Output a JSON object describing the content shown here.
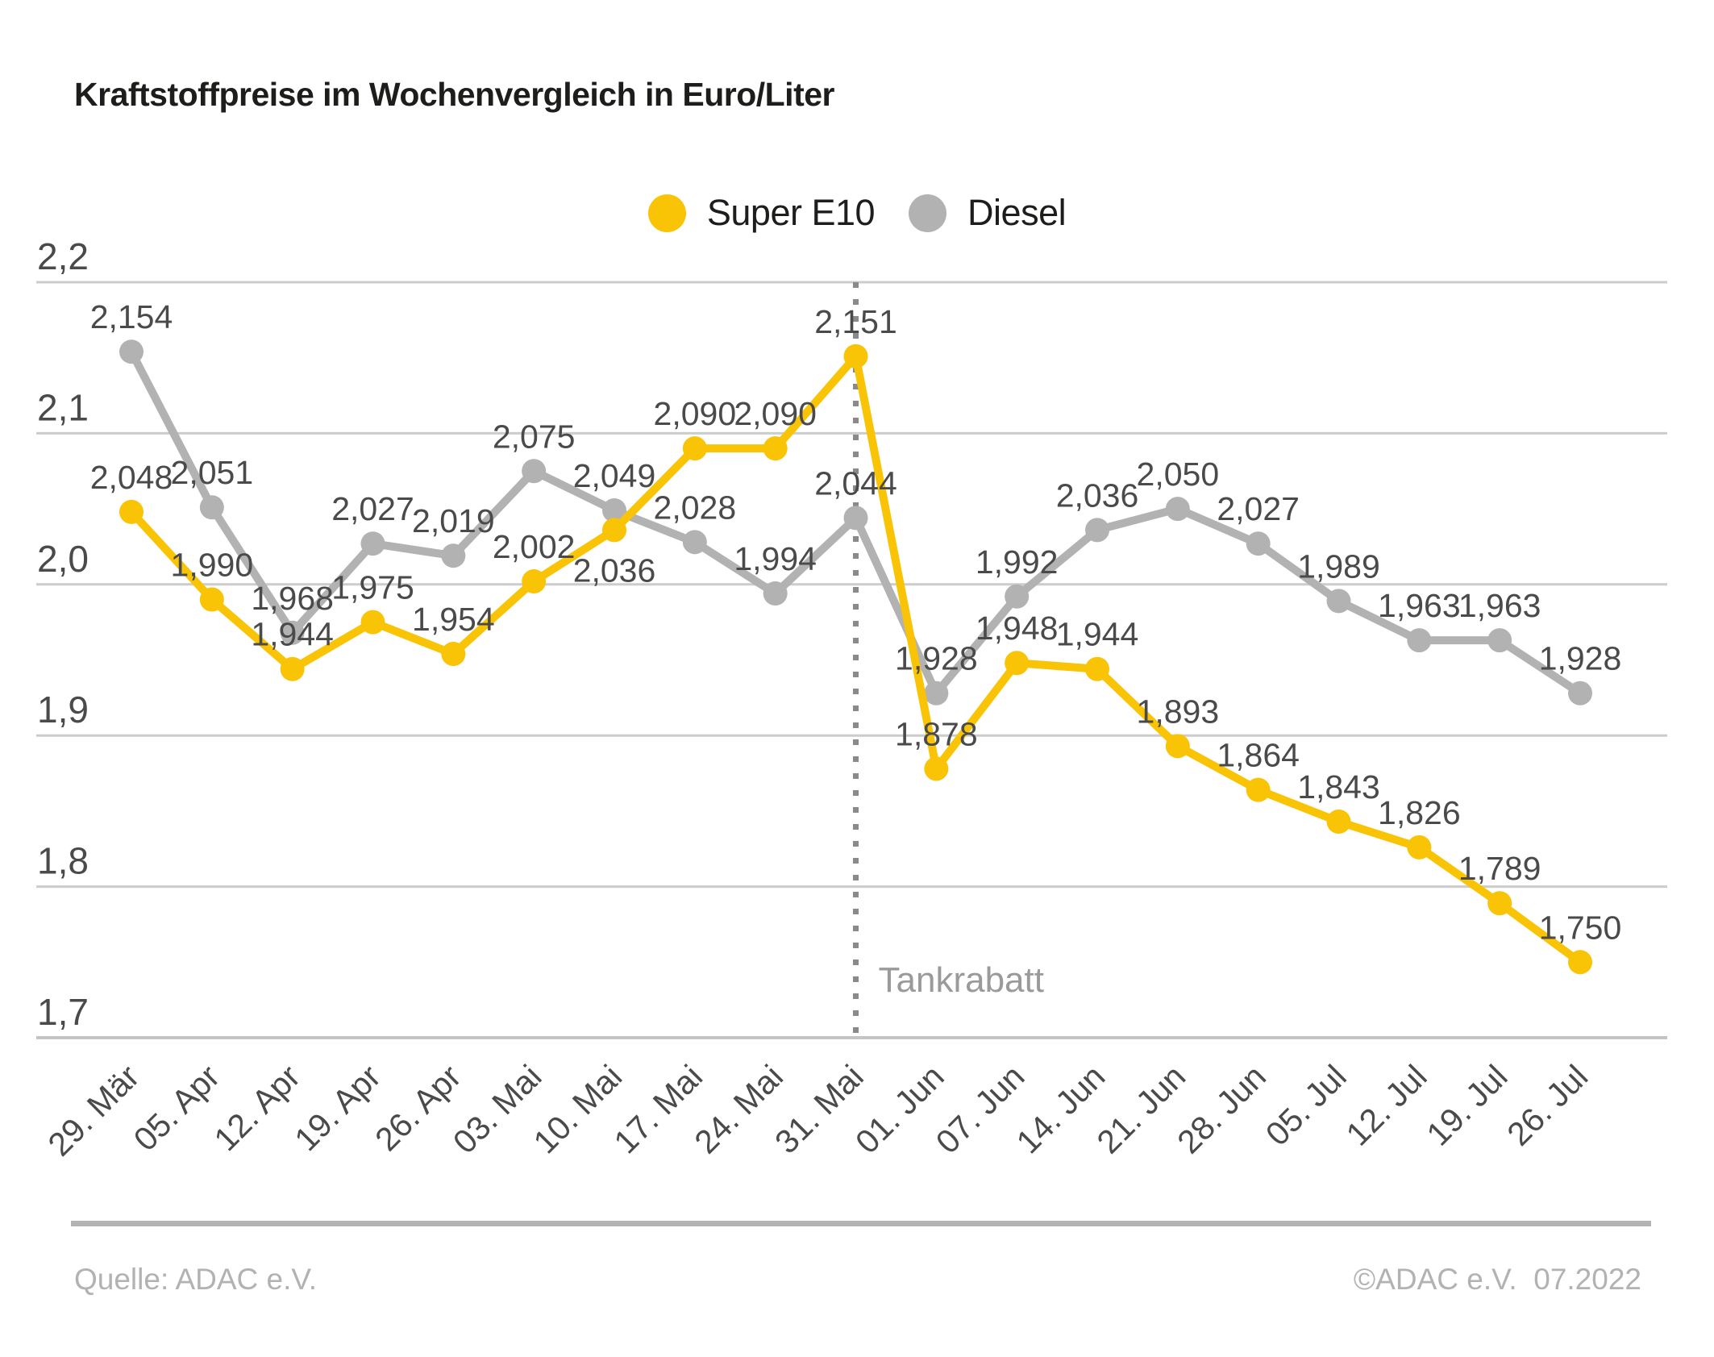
{
  "title": "Kraftstoffpreise im Wochenvergleich in Euro/Liter",
  "legend": [
    {
      "label": "Super E10",
      "color": "#f9c306"
    },
    {
      "label": "Diesel",
      "color": "#b2b2b2"
    }
  ],
  "chart_data": {
    "type": "line",
    "title": "Kraftstoffpreise im Wochenvergleich in Euro/Liter",
    "xlabel": "",
    "ylabel": "Euro/Liter",
    "categories": [
      "29. Mär",
      "05. Apr",
      "12. Apr",
      "19. Apr",
      "26. Apr",
      "03. Mai",
      "10. Mai",
      "17. Mai",
      "24. Mai",
      "31. Mai",
      "01. Jun",
      "07. Jun",
      "14. Jun",
      "21. Jun",
      "28. Jun",
      "05. Jul",
      "12. Jul",
      "19. Jul",
      "26. Jul"
    ],
    "series": [
      {
        "name": "Super E10",
        "color": "#f9c306",
        "values": [
          2.048,
          1.99,
          1.944,
          1.975,
          1.954,
          2.002,
          2.036,
          2.09,
          2.09,
          2.151,
          1.878,
          1.948,
          1.944,
          1.893,
          1.864,
          1.843,
          1.826,
          1.789,
          1.75
        ],
        "labels": [
          "2,048",
          "1,990",
          "1,944",
          "1,975",
          "1,954",
          "2,002",
          "2,036",
          "2,090",
          "2,090",
          "2,151",
          "1,878",
          "1,948",
          "1,944",
          "1,893",
          "1,864",
          "1,843",
          "1,826",
          "1,789",
          "1,750"
        ],
        "label_below_indices": [
          6
        ]
      },
      {
        "name": "Diesel",
        "color": "#b2b2b2",
        "values": [
          2.154,
          2.051,
          1.968,
          2.027,
          2.019,
          2.075,
          2.049,
          2.028,
          1.994,
          2.044,
          1.928,
          1.992,
          2.036,
          2.05,
          2.027,
          1.989,
          1.963,
          1.963,
          1.928
        ],
        "labels": [
          "2,154",
          "2,051",
          "1,968",
          "2,027",
          "2,019",
          "2,075",
          "2,049",
          "2,028",
          "1,994",
          "2,044",
          "1,928",
          "1,992",
          "2,036",
          "2,050",
          "2,027",
          "1,989",
          "1,963",
          "1,963",
          "1,928"
        ],
        "label_below_indices": []
      }
    ],
    "ylim": [
      1.7,
      2.2
    ],
    "y_ticks": [
      {
        "value": 2.2,
        "label": "2,2"
      },
      {
        "value": 2.1,
        "label": "2,1"
      },
      {
        "value": 2.0,
        "label": "2,0"
      },
      {
        "value": 1.9,
        "label": "1,9"
      },
      {
        "value": 1.8,
        "label": "1,8"
      },
      {
        "value": 1.7,
        "label": "1,7"
      }
    ],
    "grid": true,
    "legend_position": "top-center",
    "annotation": {
      "label": "Tankrabatt",
      "category": "31. Mai",
      "category_index": 9
    }
  },
  "footer": {
    "source": "Quelle: ADAC e.V.",
    "copyright": "©ADAC e.V.  07.2022"
  },
  "colors": {
    "grid_line": "#cccccc",
    "axis_line": "#c4c4c4",
    "tick_text": "#4a4a4a",
    "data_label_text": "#4a4a4a",
    "annotation_line": "#8a8a8a",
    "annotation_text": "#9a9a9a",
    "footer_text": "#b2b2b2",
    "title_text": "#1d1d1b"
  }
}
